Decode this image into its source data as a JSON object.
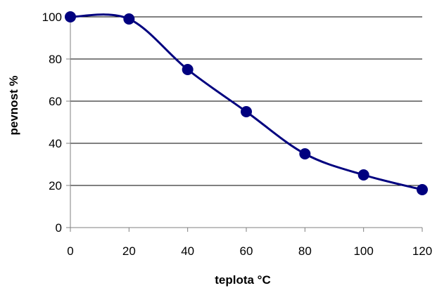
{
  "chart_data": {
    "type": "line",
    "title": "",
    "xlabel": "teplota °C",
    "ylabel": "pevnost  %",
    "xlim": [
      0,
      120
    ],
    "ylim": [
      0,
      100
    ],
    "x_ticks": [
      0,
      20,
      40,
      60,
      80,
      100,
      120
    ],
    "y_ticks": [
      0,
      20,
      40,
      60,
      80,
      100
    ],
    "grid": "horizontal",
    "legend": "none",
    "smooth": true,
    "series": [
      {
        "x": [
          0,
          20,
          40,
          60,
          80,
          100,
          120
        ],
        "y": [
          100,
          99,
          75,
          55,
          35,
          25,
          18
        ],
        "color": "#00007f",
        "marker": "circle"
      }
    ]
  }
}
